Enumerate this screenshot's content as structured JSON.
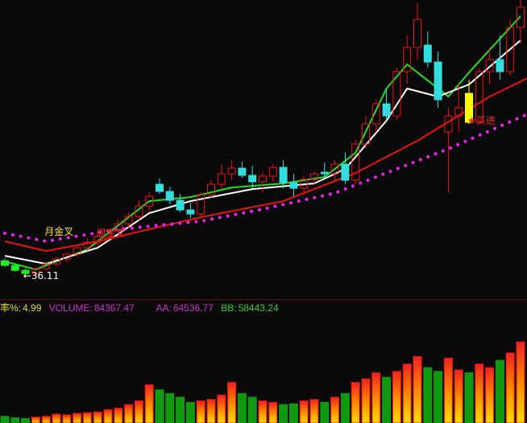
{
  "chart_data": {
    "type": "candlestick",
    "candles_ohlc": [
      [
        38.0,
        38.3,
        37.2,
        37.4
      ],
      [
        37.4,
        37.6,
        36.6,
        36.8
      ],
      [
        36.8,
        37.0,
        36.2,
        36.4
      ],
      [
        36.4,
        37.2,
        36.11,
        37.0
      ],
      [
        37.0,
        37.8,
        36.8,
        37.6
      ],
      [
        37.6,
        38.5,
        37.3,
        38.2
      ],
      [
        38.2,
        39.0,
        37.8,
        38.8
      ],
      [
        38.8,
        40.0,
        38.5,
        39.6
      ],
      [
        39.6,
        40.8,
        39.2,
        40.3
      ],
      [
        40.3,
        41.5,
        39.8,
        41.0
      ],
      [
        40.8,
        42.0,
        40.5,
        41.8
      ],
      [
        41.8,
        43.0,
        41.3,
        42.6
      ],
      [
        42.6,
        44.0,
        42.0,
        43.5
      ],
      [
        43.5,
        45.5,
        43.0,
        44.8
      ],
      [
        44.8,
        46.5,
        44.0,
        46.0
      ],
      [
        47.5,
        48.2,
        46.3,
        46.6
      ],
      [
        46.6,
        47.2,
        45.0,
        45.5
      ],
      [
        45.5,
        46.3,
        44.0,
        44.3
      ],
      [
        44.3,
        45.2,
        43.3,
        43.8
      ],
      [
        43.8,
        46.5,
        43.5,
        46.2
      ],
      [
        46.2,
        48.0,
        45.8,
        47.5
      ],
      [
        47.5,
        50.0,
        47.0,
        48.8
      ],
      [
        48.8,
        50.5,
        48.0,
        49.5
      ],
      [
        49.5,
        50.3,
        48.3,
        48.6
      ],
      [
        48.6,
        49.8,
        47.0,
        47.8
      ],
      [
        47.8,
        49.0,
        46.5,
        48.5
      ],
      [
        48.5,
        50.0,
        47.8,
        49.6
      ],
      [
        49.6,
        50.5,
        47.0,
        47.7
      ],
      [
        47.7,
        48.8,
        46.0,
        47.0
      ],
      [
        47.0,
        48.5,
        46.5,
        48.1
      ],
      [
        48.1,
        49.0,
        47.5,
        48.8
      ],
      [
        49.0,
        50.2,
        48.3,
        48.8
      ],
      [
        48.8,
        50.5,
        48.0,
        50.0
      ],
      [
        50.0,
        51.5,
        47.5,
        48.0
      ],
      [
        48.0,
        53.0,
        47.5,
        52.5
      ],
      [
        52.5,
        56.0,
        52.0,
        55.0
      ],
      [
        55.0,
        58.0,
        54.0,
        57.5
      ],
      [
        57.5,
        59.5,
        55.5,
        56.0
      ],
      [
        56.0,
        62.0,
        55.5,
        61.5
      ],
      [
        61.5,
        66.0,
        60.0,
        64.5
      ],
      [
        64.5,
        70.0,
        63.0,
        68.0
      ],
      [
        64.8,
        66.5,
        62.0,
        62.7
      ],
      [
        62.7,
        64.0,
        57.0,
        58.0
      ],
      [
        54.0,
        57.0,
        46.5,
        56.0
      ],
      [
        56.0,
        60.0,
        54.0,
        57.0
      ],
      [
        58.8,
        60.5,
        55.0,
        55.2
      ],
      [
        55.2,
        62.0,
        55.0,
        61.5
      ],
      [
        61.5,
        64.5,
        60.0,
        63.0
      ],
      [
        63.0,
        66.0,
        60.5,
        61.5
      ],
      [
        61.5,
        68.0,
        61.0,
        67.0
      ],
      [
        67.0,
        71.0,
        65.0,
        69.5
      ]
    ],
    "highlight_candle": 45,
    "ma_lines": [
      {
        "color": "#22dd22",
        "points": [
          [
            0,
            37.9
          ],
          [
            3,
            36.9
          ],
          [
            8,
            39.4
          ],
          [
            14,
            45.4
          ],
          [
            18,
            45.9
          ],
          [
            22,
            47.1
          ],
          [
            27,
            47.6
          ],
          [
            31,
            48.4
          ],
          [
            34,
            51.4
          ],
          [
            37,
            59.4
          ],
          [
            39,
            62.4
          ],
          [
            41,
            60.4
          ],
          [
            43,
            58.4
          ],
          [
            45,
            61.4
          ],
          [
            50,
            68.4
          ]
        ]
      },
      {
        "color": "#ffffff",
        "points": [
          [
            0,
            38.6
          ],
          [
            4,
            37.6
          ],
          [
            9,
            39.6
          ],
          [
            14,
            43.9
          ],
          [
            18,
            45.4
          ],
          [
            24,
            46.9
          ],
          [
            30,
            47.6
          ],
          [
            33,
            49.4
          ],
          [
            37,
            55.4
          ],
          [
            39,
            59.4
          ],
          [
            42,
            58.4
          ],
          [
            45,
            59.9
          ],
          [
            50,
            65.4
          ]
        ]
      },
      {
        "color": "#ee1111",
        "points": [
          [
            0,
            40.4
          ],
          [
            4,
            39.2
          ],
          [
            9,
            40.4
          ],
          [
            19,
            43.4
          ],
          [
            27,
            45.4
          ],
          [
            34,
            48.9
          ],
          [
            40,
            52.9
          ],
          [
            47,
            58.4
          ],
          [
            51,
            60.9
          ]
        ]
      },
      {
        "color": "#ee22ee",
        "dotted": true,
        "points": [
          [
            0,
            41.4
          ],
          [
            4,
            40.4
          ],
          [
            11,
            41.9
          ],
          [
            19,
            42.9
          ],
          [
            25,
            44.4
          ],
          [
            32,
            46.4
          ],
          [
            38,
            49.4
          ],
          [
            43,
            51.9
          ],
          [
            51,
            56.4
          ]
        ]
      }
    ],
    "annotations": [
      {
        "text": "月金叉",
        "index": 4,
        "price": 41.2,
        "color": "#ffdd33"
      },
      {
        "text": "周金叉",
        "index": 9,
        "price": 41.0,
        "color": "#ee2222"
      },
      {
        "text": "★买进",
        "index": 45,
        "price": 55.0,
        "color": "#ee2222"
      },
      {
        "text": "←36.11",
        "index": 1,
        "price": 36.11,
        "color": "#ffffff"
      }
    ],
    "volume": [
      9000,
      7000,
      6000,
      8000,
      9000,
      12000,
      11000,
      13000,
      14000,
      15000,
      18000,
      20000,
      25000,
      30000,
      52000,
      45000,
      40000,
      35000,
      28000,
      30000,
      32000,
      38000,
      55000,
      40000,
      35000,
      30000,
      28000,
      25000,
      26000,
      30000,
      32000,
      28000,
      35000,
      40000,
      55000,
      60000,
      68000,
      62000,
      70000,
      80000,
      90000,
      75000,
      70000,
      88000,
      72000,
      68000,
      80000,
      75000,
      85000,
      95000,
      110000
    ],
    "volume_indicators": {
      "turnover_label": "率%:",
      "turnover_value": "4.99",
      "volume_label": "VOLUME:",
      "volume_value": "84367.47",
      "aa_label": "AA:",
      "aa_value": "64536.77",
      "bb_label": "BB:",
      "bb_value": "58443.24"
    },
    "up_color": "#ee1111",
    "down_color": "#33dddd"
  }
}
